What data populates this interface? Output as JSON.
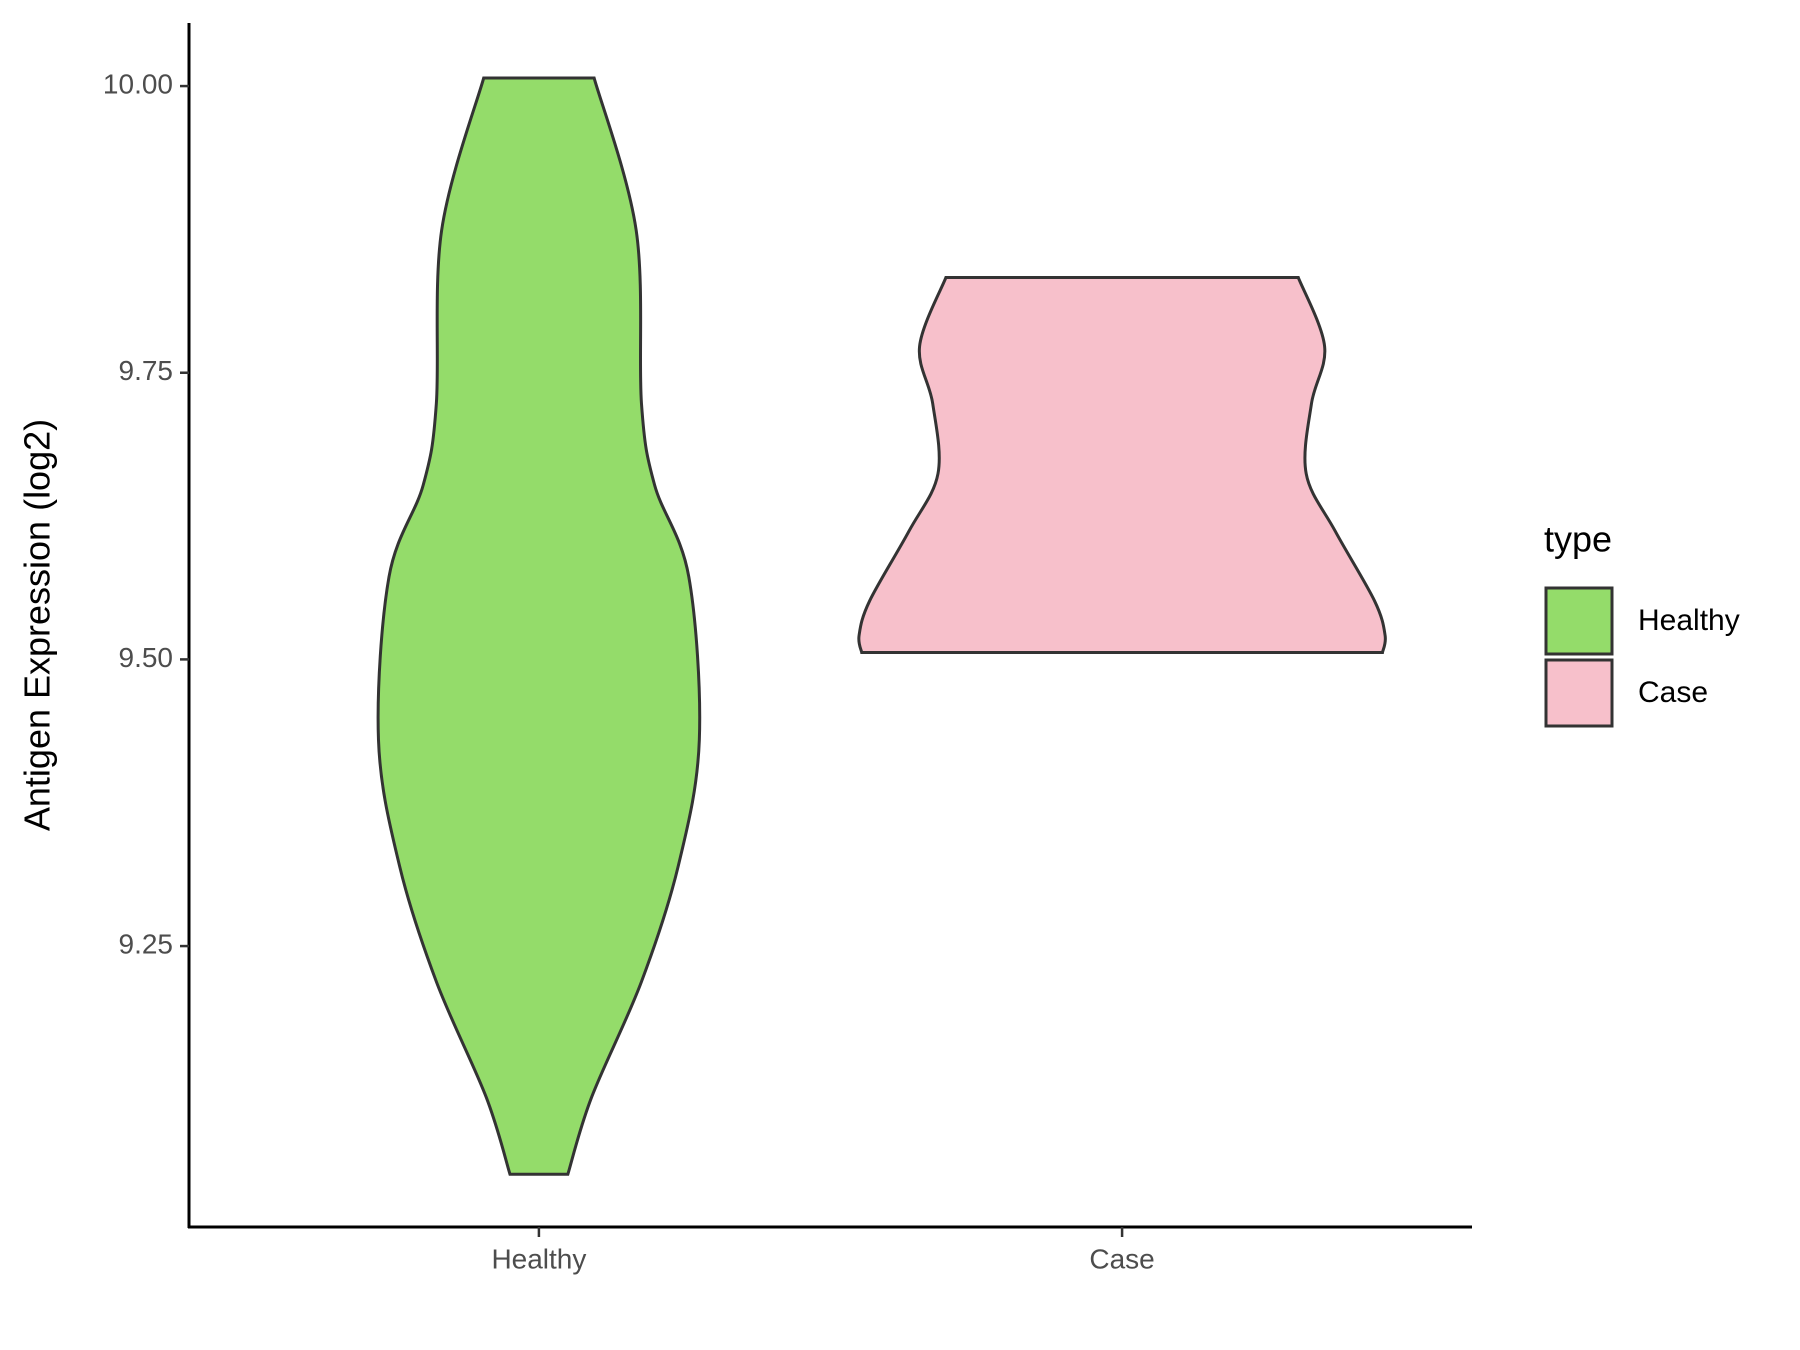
{
  "chart_data": {
    "type": "violin",
    "y_label": "Antigen Expression (log2)",
    "categories": [
      "Healthy",
      "Case"
    ],
    "legend_title": "type",
    "ylim": [
      9.005,
      10.055
    ],
    "yticks": [
      9.25,
      {
        "value": 9.5,
        "label": "9.50"
      },
      9.75,
      {
        "value": 10,
        "label": "10.00"
      }
    ],
    "series": [
      {
        "name": "Healthy",
        "color": "#94dc6a",
        "y": [
          10.007,
          9.874,
          9.723,
          9.652,
          9.572,
          9.43,
          9.32,
          9.219,
          9.118,
          9.051
        ],
        "density": [
          0.21,
          0.37,
          0.39,
          0.44,
          0.57,
          0.61,
          0.53,
          0.39,
          0.2,
          0.11
        ]
      },
      {
        "name": "Case",
        "color": "#f7c0cb",
        "y": [
          9.833,
          9.773,
          9.723,
          9.662,
          9.612,
          9.551,
          9.521,
          9.506
        ],
        "density": [
          0.67,
          0.77,
          0.72,
          0.7,
          0.81,
          0.96,
          1.0,
          0.99
        ]
      }
    ]
  }
}
